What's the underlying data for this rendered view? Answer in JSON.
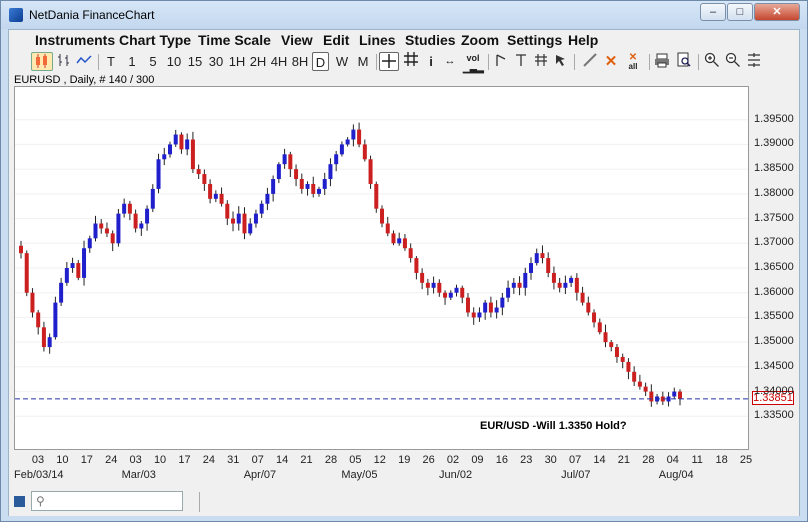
{
  "window": {
    "title": "NetDania FinanceChart",
    "minimize_label": "–",
    "maximize_label": "□",
    "close_label": "✕"
  },
  "menu": [
    "Instruments",
    "Chart Type",
    "Time Scale",
    "View",
    "Edit",
    "Lines",
    "Studies",
    "Zoom",
    "Settings",
    "Help"
  ],
  "toolbar": {
    "periods": [
      "T",
      "1",
      "5",
      "10",
      "15",
      "30",
      "1H",
      "2H",
      "4H",
      "8H",
      "D",
      "W",
      "M"
    ],
    "selected_period": "D",
    "icons": [
      "candlestick-icon",
      "ohlc-bars-icon",
      "line-chart-icon",
      "crosshair-icon",
      "grid-icon",
      "info-icon",
      "scroll-icon",
      "volume-icon",
      "trendline-icon",
      "horizontal-line-icon",
      "fibonacci-icon",
      "cursor-icon",
      "draw-icon",
      "delete-icon",
      "delete-all-icon",
      "print-icon",
      "print-preview-icon",
      "zoom-in-icon",
      "zoom-out-icon",
      "zoom-reset-icon"
    ],
    "vol_label": "vol",
    "info_label": "i",
    "delete_all_label": "all"
  },
  "chart": {
    "instrument_label": "EURUSD , Daily, # 140 / 300",
    "last_price": "1.33851",
    "annotation": "EUR/USD -Will 1.3350 Hold?",
    "date_ticks": [
      "03",
      "10",
      "17",
      "24",
      "03",
      "10",
      "17",
      "24",
      "31",
      "07",
      "14",
      "21",
      "28",
      "05",
      "12",
      "19",
      "26",
      "02",
      "09",
      "16",
      "23",
      "30",
      "07",
      "14",
      "21",
      "28",
      "04",
      "11",
      "18",
      "25"
    ],
    "month_labels": [
      "Feb/03/14",
      "Mar/03",
      "Apr/07",
      "May/05",
      "Jun/02",
      "Jul/07",
      "Aug/04"
    ]
  },
  "chart_data": {
    "type": "candlestick",
    "instrument": "EURUSD",
    "period": "Daily",
    "up_color": "#1f1fcc",
    "down_color": "#cc1f1f",
    "ylim": [
      1.33,
      1.4
    ],
    "y_ticks": [
      "1.39500",
      "1.39000",
      "1.38500",
      "1.38000",
      "1.37500",
      "1.37000",
      "1.36500",
      "1.36000",
      "1.35500",
      "1.35000",
      "1.34500",
      "1.34000",
      "1.33500"
    ],
    "reference_line": 1.33851,
    "closes": [
      1.368,
      1.36,
      1.356,
      1.353,
      1.349,
      1.351,
      1.358,
      1.362,
      1.365,
      1.366,
      1.363,
      1.369,
      1.371,
      1.374,
      1.373,
      1.372,
      1.37,
      1.376,
      1.378,
      1.376,
      1.373,
      1.374,
      1.377,
      1.381,
      1.387,
      1.388,
      1.39,
      1.392,
      1.389,
      1.391,
      1.385,
      1.384,
      1.382,
      1.379,
      1.38,
      1.378,
      1.375,
      1.374,
      1.376,
      1.372,
      1.374,
      1.376,
      1.378,
      1.38,
      1.383,
      1.386,
      1.388,
      1.385,
      1.383,
      1.381,
      1.382,
      1.38,
      1.381,
      1.383,
      1.386,
      1.388,
      1.39,
      1.391,
      1.393,
      1.39,
      1.387,
      1.382,
      1.377,
      1.374,
      1.372,
      1.37,
      1.371,
      1.369,
      1.367,
      1.364,
      1.362,
      1.361,
      1.362,
      1.36,
      1.359,
      1.36,
      1.361,
      1.359,
      1.356,
      1.355,
      1.356,
      1.358,
      1.356,
      1.357,
      1.359,
      1.361,
      1.362,
      1.361,
      1.364,
      1.366,
      1.368,
      1.367,
      1.364,
      1.362,
      1.361,
      1.362,
      1.363,
      1.36,
      1.358,
      1.356,
      1.354,
      1.352,
      1.35,
      1.349,
      1.347,
      1.346,
      1.344,
      1.342,
      1.341,
      1.34,
      1.338,
      1.339,
      1.338,
      1.339,
      1.34,
      1.3385
    ]
  }
}
